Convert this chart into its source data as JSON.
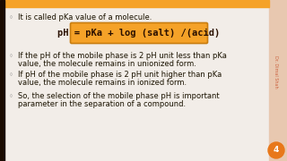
{
  "background_color": "#f2ede8",
  "left_border_color": "#1a0a00",
  "title_line": "It is called pKa value of a molecule.",
  "formula": "pH = pKa + log (salt) /(acid)",
  "formula_bg": "#f5a228",
  "formula_border": "#c87d10",
  "bullet1_line1": "If the pH of the mobile phase is 2 pH unit less than pKa",
  "bullet1_line2": "value, the molecule remains in unionized form.",
  "bullet2_line1": "If pH of the mobile phase is 2 pH unit higher than pKa",
  "bullet2_line2": "value, the molecule remains in ionized form.",
  "bullet3_line1": "So, the selection of the mobile phase pH is important",
  "bullet3_line2": "parameter in the separation of a compound.",
  "text_color": "#1a1200",
  "bullet_symbol_color": "#888888",
  "side_text": "Dr. Dimal Shah",
  "side_text_color": "#cc6644",
  "page_num": "4",
  "page_circle_color": "#e8781a",
  "right_border_color": "#e8c8b0",
  "font_size_main": 6.0,
  "font_size_formula": 7.5,
  "font_size_side": 3.5
}
